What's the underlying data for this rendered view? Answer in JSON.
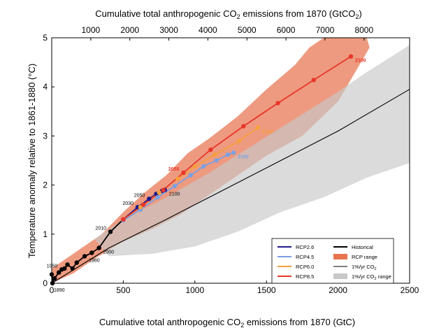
{
  "chart_data": {
    "type": "line",
    "top_axis_title_prefix": "Cumulative total anthropogenic CO",
    "top_axis_title_sub": "2",
    "top_axis_title_suffix": " emissions from 1870 (GtCO",
    "top_axis_title_sub2": "2",
    "top_axis_title_end": ")",
    "bottom_axis_title_prefix": "Cumulative total anthropogenic CO",
    "bottom_axis_title_sub": "2",
    "bottom_axis_title_suffix": " emissions from 1870 (GtC)",
    "ylabel": "Temperature anomaly relative to 1861-1880 (°C)",
    "xlim": [
      0,
      2500
    ],
    "ylim": [
      0,
      5
    ],
    "x_ticks": [
      0,
      500,
      1000,
      1500,
      2000,
      2500
    ],
    "y_ticks": [
      0,
      1,
      2,
      3,
      4,
      5
    ],
    "top_ticks": [
      1000,
      2000,
      3000,
      4000,
      5000,
      6000,
      7000,
      8000
    ],
    "grid": false,
    "legend_position": "bottom-right",
    "legend": [
      {
        "label": "RCP2.6",
        "kind": "line",
        "color": "#1f1a8a"
      },
      {
        "label": "RCP4.5",
        "kind": "line",
        "color": "#7b9fe0"
      },
      {
        "label": "RCP6.0",
        "kind": "line",
        "color": "#f5a03c"
      },
      {
        "label": "RCP8.5",
        "kind": "line",
        "color": "#e8362a"
      },
      {
        "label": "Historical",
        "kind": "line",
        "color": "#000000"
      },
      {
        "label": "RCP range",
        "kind": "patch",
        "color": "#e8734f"
      },
      {
        "label": "1%/yr CO",
        "sub": "2",
        "kind": "thinline",
        "color": "#000000"
      },
      {
        "label": "1%/yr CO",
        "sub": "2",
        "suffix": " range",
        "kind": "patch",
        "color": "#c8c8c8"
      }
    ],
    "series": [
      {
        "name": "Historical",
        "color": "#000000",
        "points": [
          {
            "x": 0,
            "y": 0.18
          },
          {
            "x": 5,
            "y": 0.0
          },
          {
            "x": 20,
            "y": 0.1
          },
          {
            "x": 50,
            "y": 0.22
          },
          {
            "x": 70,
            "y": 0.28
          },
          {
            "x": 90,
            "y": 0.3
          },
          {
            "x": 110,
            "y": 0.38
          },
          {
            "x": 145,
            "y": 0.3
          },
          {
            "x": 175,
            "y": 0.42
          },
          {
            "x": 230,
            "y": 0.55
          },
          {
            "x": 280,
            "y": 0.62
          },
          {
            "x": 330,
            "y": 0.72
          },
          {
            "x": 410,
            "y": 1.05
          },
          {
            "x": 500,
            "y": 1.3
          }
        ],
        "labels": [
          {
            "text": "1890",
            "x": 5,
            "y": 0.0
          },
          {
            "text": "1950",
            "x": 70,
            "y": 0.28
          },
          {
            "text": "1980",
            "x": 230,
            "y": 0.55
          },
          {
            "text": "2000",
            "x": 330,
            "y": 0.72
          },
          {
            "text": "2010",
            "x": 410,
            "y": 1.05
          }
        ]
      },
      {
        "name": "RCP2.6",
        "color": "#1f1a8a",
        "points": [
          {
            "x": 500,
            "y": 1.3
          },
          {
            "x": 600,
            "y": 1.55
          },
          {
            "x": 680,
            "y": 1.72
          },
          {
            "x": 730,
            "y": 1.82
          },
          {
            "x": 770,
            "y": 1.88
          },
          {
            "x": 790,
            "y": 1.9
          }
        ],
        "labels": [
          {
            "text": "2030",
            "x": 600,
            "y": 1.55
          },
          {
            "text": "2050",
            "x": 680,
            "y": 1.72
          },
          {
            "text": "2100",
            "x": 790,
            "y": 1.9
          }
        ]
      },
      {
        "name": "RCP4.5",
        "color": "#7b9fe0",
        "points": [
          {
            "x": 500,
            "y": 1.28
          },
          {
            "x": 620,
            "y": 1.5
          },
          {
            "x": 740,
            "y": 1.75
          },
          {
            "x": 860,
            "y": 1.98
          },
          {
            "x": 970,
            "y": 2.2
          },
          {
            "x": 1060,
            "y": 2.38
          },
          {
            "x": 1150,
            "y": 2.5
          },
          {
            "x": 1230,
            "y": 2.62
          },
          {
            "x": 1270,
            "y": 2.66
          }
        ],
        "labels": [
          {
            "text": "2100",
            "x": 1270,
            "y": 2.66
          }
        ]
      },
      {
        "name": "RCP6.0",
        "color": "#f5a03c",
        "points": [
          {
            "x": 500,
            "y": 1.3
          },
          {
            "x": 620,
            "y": 1.55
          },
          {
            "x": 750,
            "y": 1.85
          },
          {
            "x": 880,
            "y": 2.13
          },
          {
            "x": 1000,
            "y": 2.38
          },
          {
            "x": 1140,
            "y": 2.62
          },
          {
            "x": 1310,
            "y": 2.9
          },
          {
            "x": 1440,
            "y": 3.17
          }
        ],
        "labels": [
          {
            "text": "2100",
            "x": 1440,
            "y": 3.17
          }
        ]
      },
      {
        "name": "RCP8.5",
        "color": "#e8362a",
        "points": [
          {
            "x": 500,
            "y": 1.3
          },
          {
            "x": 640,
            "y": 1.6
          },
          {
            "x": 780,
            "y": 1.9
          },
          {
            "x": 920,
            "y": 2.25
          },
          {
            "x": 1110,
            "y": 2.72
          },
          {
            "x": 1340,
            "y": 3.2
          },
          {
            "x": 1580,
            "y": 3.67
          },
          {
            "x": 1830,
            "y": 4.14
          },
          {
            "x": 2090,
            "y": 4.62
          }
        ],
        "labels": [
          {
            "text": "2050",
            "x": 920,
            "y": 2.25
          },
          {
            "text": "2100",
            "x": 2090,
            "y": 4.62
          }
        ]
      },
      {
        "name": "1%/yr CO2",
        "color": "#000000",
        "points": [
          {
            "x": 0,
            "y": 0.0
          },
          {
            "x": 400,
            "y": 0.72
          },
          {
            "x": 800,
            "y": 1.3
          },
          {
            "x": 1200,
            "y": 1.9
          },
          {
            "x": 1600,
            "y": 2.5
          },
          {
            "x": 2000,
            "y": 3.1
          },
          {
            "x": 2500,
            "y": 3.95
          }
        ],
        "labels": []
      }
    ],
    "ranges": [
      {
        "name": "RCP range",
        "color": "#e8734f",
        "points": [
          {
            "x": 0,
            "y": 0.3
          },
          {
            "x": 150,
            "y": 0.6
          },
          {
            "x": 350,
            "y": 1.0
          },
          {
            "x": 500,
            "y": 1.45
          },
          {
            "x": 650,
            "y": 1.85
          },
          {
            "x": 800,
            "y": 2.2
          },
          {
            "x": 950,
            "y": 2.65
          },
          {
            "x": 1100,
            "y": 2.95
          },
          {
            "x": 1300,
            "y": 3.4
          },
          {
            "x": 1500,
            "y": 3.95
          },
          {
            "x": 1700,
            "y": 4.45
          },
          {
            "x": 1800,
            "y": 4.8
          },
          {
            "x": 1900,
            "y": 5.0
          },
          {
            "x": 2200,
            "y": 5.0
          },
          {
            "x": 2220,
            "y": 4.8
          },
          {
            "x": 2000,
            "y": 3.7
          },
          {
            "x": 1750,
            "y": 3.0
          },
          {
            "x": 1500,
            "y": 2.6
          },
          {
            "x": 1300,
            "y": 2.2
          },
          {
            "x": 1100,
            "y": 1.8
          },
          {
            "x": 900,
            "y": 1.4
          },
          {
            "x": 700,
            "y": 1.1
          },
          {
            "x": 500,
            "y": 0.85
          },
          {
            "x": 300,
            "y": 0.5
          },
          {
            "x": 150,
            "y": 0.2
          },
          {
            "x": 0,
            "y": -0.1
          }
        ]
      },
      {
        "name": "1%/yr CO2 range",
        "color": "#c8c8c8",
        "points": [
          {
            "x": 300,
            "y": 0.9
          },
          {
            "x": 500,
            "y": 1.3
          },
          {
            "x": 800,
            "y": 1.75
          },
          {
            "x": 1100,
            "y": 2.25
          },
          {
            "x": 1400,
            "y": 2.8
          },
          {
            "x": 1700,
            "y": 3.35
          },
          {
            "x": 2000,
            "y": 3.9
          },
          {
            "x": 2200,
            "y": 4.3
          },
          {
            "x": 2500,
            "y": 4.85
          },
          {
            "x": 2500,
            "y": 2.45
          },
          {
            "x": 2200,
            "y": 2.15
          },
          {
            "x": 1900,
            "y": 1.75
          },
          {
            "x": 1600,
            "y": 1.45
          },
          {
            "x": 1300,
            "y": 1.05
          },
          {
            "x": 1000,
            "y": 0.75
          },
          {
            "x": 700,
            "y": 0.6
          },
          {
            "x": 400,
            "y": 0.55
          }
        ]
      }
    ]
  }
}
